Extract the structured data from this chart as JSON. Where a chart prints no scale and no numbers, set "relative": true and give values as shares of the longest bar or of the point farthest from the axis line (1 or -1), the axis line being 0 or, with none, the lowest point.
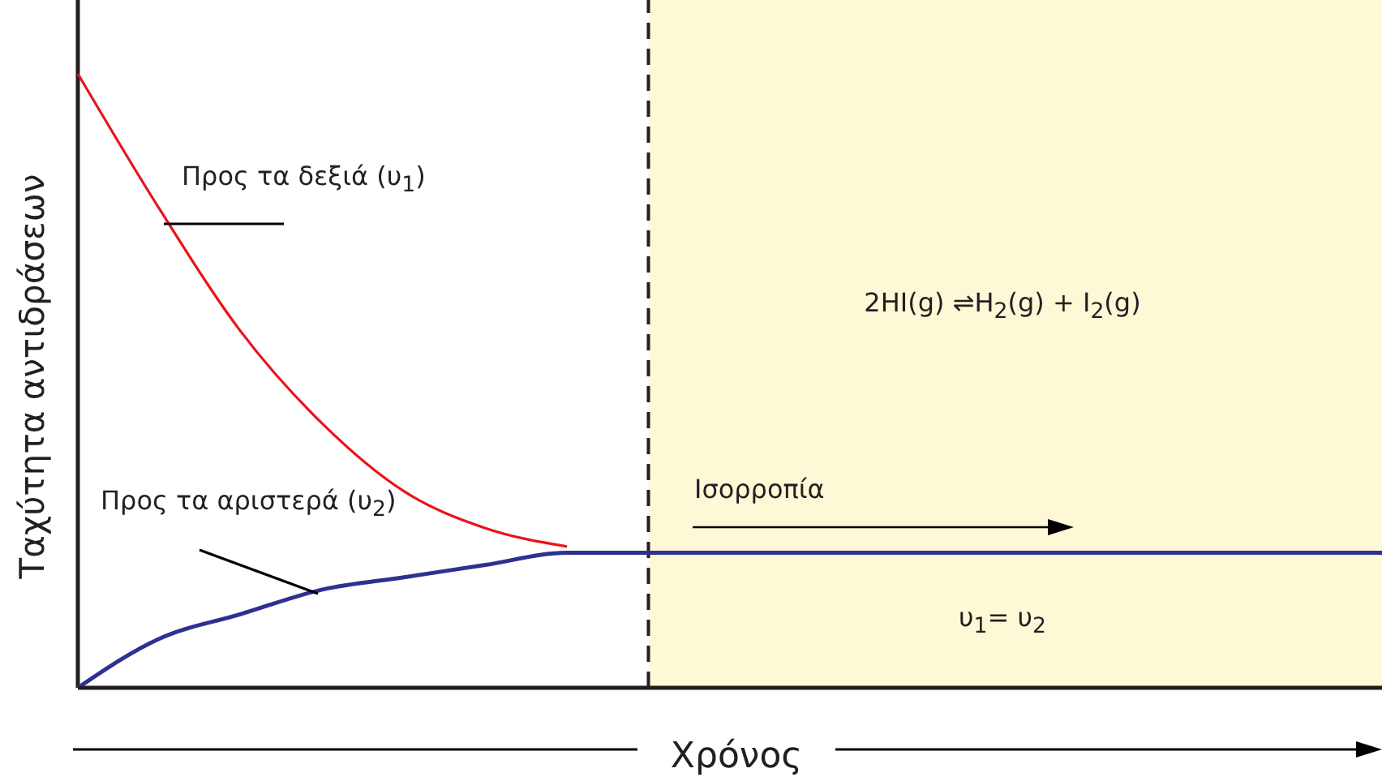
{
  "chart_data": {
    "type": "line",
    "relative": true,
    "xlabel": "Χρόνος",
    "ylabel": "Ταχύτητα αντιδράσεων",
    "categories": [
      null,
      null,
      null,
      null,
      null,
      null,
      null,
      null,
      null,
      null,
      null,
      null,
      null,
      null,
      null,
      null,
      null
    ],
    "series": [
      {
        "name": "Προς τα δεξιά (υ$_{1}$)",
        "color": "#e8141b",
        "values": [
          1,
          0.78,
          0.58,
          0.43,
          0.32,
          0.26,
          0.23,
          null,
          null,
          null,
          null,
          null,
          null,
          null,
          null,
          null,
          null
        ]
      },
      {
        "name": "Προς τα αριστερά (υ$_{2}$)",
        "color": "#2e3192",
        "values": [
          0,
          0.08,
          0.12,
          0.16,
          0.18,
          0.2,
          0.22,
          0.22,
          0.22,
          0.22,
          0.22,
          0.22,
          0.22,
          0.22,
          0.22,
          0.22,
          0.22
        ]
      }
    ],
    "annotations": [
      "2HI(g) ⇌H$_{2}$(g) + I$_{2}$(g)",
      "Ισορροπία",
      "υ$_{1}$= υ$_{2}$"
    ],
    "legend": false,
    "grid": false,
    "marker": "none",
    "line_style": "solid"
  }
}
